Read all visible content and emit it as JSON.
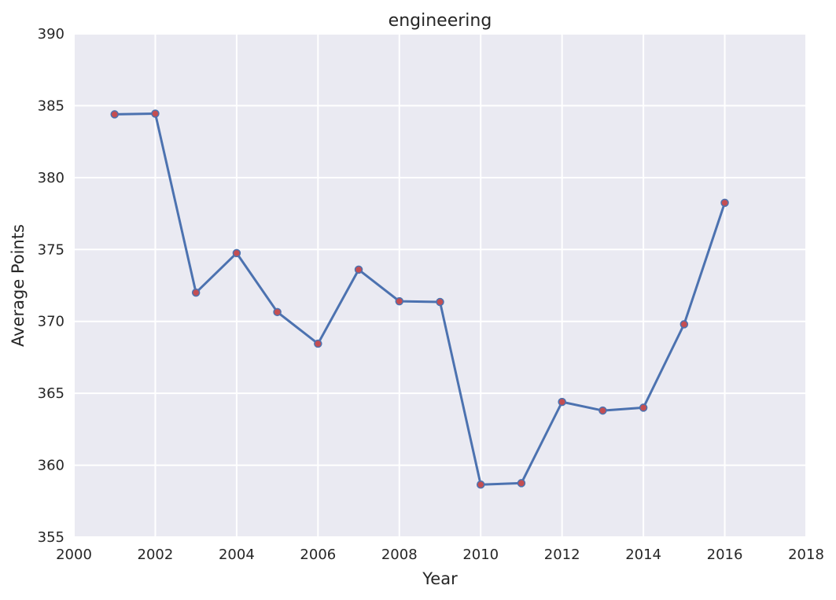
{
  "chart_data": {
    "type": "line",
    "title": "engineering",
    "xlabel": "Year",
    "ylabel": "Average Points",
    "xlim": [
      2000,
      2018
    ],
    "ylim": [
      355,
      390
    ],
    "xticks": [
      2000,
      2002,
      2004,
      2006,
      2008,
      2010,
      2012,
      2014,
      2016,
      2018
    ],
    "yticks": [
      355,
      360,
      365,
      370,
      375,
      380,
      385,
      390
    ],
    "grid": true,
    "series": [
      {
        "x": [
          2001,
          2002,
          2003,
          2004,
          2005,
          2006,
          2007,
          2008,
          2009,
          2010,
          2011,
          2012,
          2013,
          2014,
          2015,
          2016
        ],
        "y": [
          384.4,
          384.45,
          372.0,
          374.75,
          370.65,
          368.45,
          373.6,
          371.4,
          371.35,
          358.65,
          358.75,
          364.4,
          363.8,
          364.0,
          369.8,
          378.25
        ],
        "line_color": "#4c72b0",
        "marker_color": "#c44e52"
      }
    ]
  },
  "colors": {
    "plot_background": "#eaeaf2",
    "grid": "#ffffff"
  }
}
